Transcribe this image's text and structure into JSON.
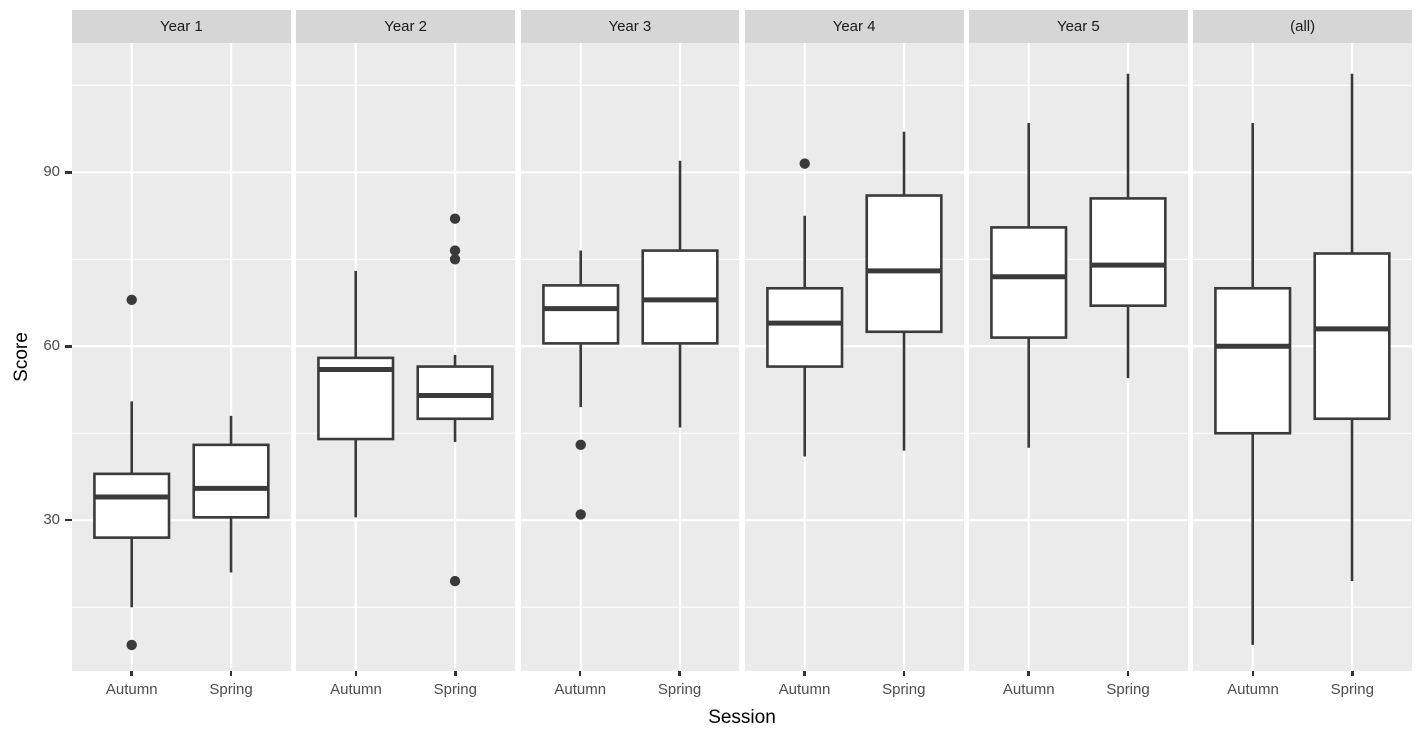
{
  "chart_data": {
    "type": "boxplot",
    "title": "",
    "xlabel": "Session",
    "ylabel": "Score",
    "categories": [
      "Autumn",
      "Spring"
    ],
    "y_major_ticks": [
      30,
      60,
      90
    ],
    "y_minor_gridlines": [
      15,
      45,
      75,
      105
    ],
    "ylim": [
      4,
      112.3
    ],
    "grid": true,
    "legend": "none",
    "colors": {
      "panel_background": "#ebebeb",
      "strip_background": "#d6d6d6",
      "gridline": "#ffffff",
      "box_fill": "#ffffff",
      "box_stroke": "#3a3a3a",
      "outlier": "#3a3a3a",
      "tick_label": "#4d4d4d",
      "axis_title": "#000000"
    },
    "facets": [
      {
        "label": "Year 1",
        "boxes": [
          {
            "category": "Autumn",
            "whisker_low": 15,
            "q1": 27,
            "median": 34,
            "q3": 38,
            "whisker_high": 50.5,
            "outliers": [
              68,
              8.5
            ]
          },
          {
            "category": "Spring",
            "whisker_low": 21,
            "q1": 30.5,
            "median": 35.5,
            "q3": 43,
            "whisker_high": 48,
            "outliers": []
          }
        ]
      },
      {
        "label": "Year 2",
        "boxes": [
          {
            "category": "Autumn",
            "whisker_low": 30.5,
            "q1": 44,
            "median": 56,
            "q3": 58,
            "whisker_high": 73,
            "outliers": []
          },
          {
            "category": "Spring",
            "whisker_low": 43.5,
            "q1": 47.5,
            "median": 51.5,
            "q3": 56.5,
            "whisker_high": 58.5,
            "outliers": [
              82,
              76.5,
              75,
              19.5
            ]
          }
        ]
      },
      {
        "label": "Year 3",
        "boxes": [
          {
            "category": "Autumn",
            "whisker_low": 49.5,
            "q1": 60.5,
            "median": 66.5,
            "q3": 70.5,
            "whisker_high": 76.5,
            "outliers": [
              43,
              31
            ]
          },
          {
            "category": "Spring",
            "whisker_low": 46,
            "q1": 60.5,
            "median": 68,
            "q3": 76.5,
            "whisker_high": 92,
            "outliers": []
          }
        ]
      },
      {
        "label": "Year 4",
        "boxes": [
          {
            "category": "Autumn",
            "whisker_low": 41,
            "q1": 56.5,
            "median": 64,
            "q3": 70,
            "whisker_high": 82.5,
            "outliers": [
              91.5
            ]
          },
          {
            "category": "Spring",
            "whisker_low": 42,
            "q1": 62.5,
            "median": 73,
            "q3": 86,
            "whisker_high": 97,
            "outliers": []
          }
        ]
      },
      {
        "label": "Year 5",
        "boxes": [
          {
            "category": "Autumn",
            "whisker_low": 42.5,
            "q1": 61.5,
            "median": 72,
            "q3": 80.5,
            "whisker_high": 98.5,
            "outliers": []
          },
          {
            "category": "Spring",
            "whisker_low": 54.5,
            "q1": 67,
            "median": 74,
            "q3": 85.5,
            "whisker_high": 107,
            "outliers": []
          }
        ]
      },
      {
        "label": "(all)",
        "boxes": [
          {
            "category": "Autumn",
            "whisker_low": 8.5,
            "q1": 45,
            "median": 60,
            "q3": 70,
            "whisker_high": 98.5,
            "outliers": []
          },
          {
            "category": "Spring",
            "whisker_low": 19.5,
            "q1": 47.5,
            "median": 63,
            "q3": 76,
            "whisker_high": 107,
            "outliers": []
          }
        ]
      }
    ]
  }
}
